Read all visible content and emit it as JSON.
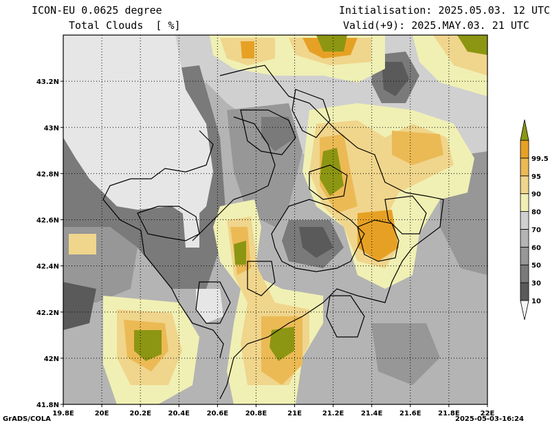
{
  "header": {
    "model": "ICON-EU 0.0625 degree",
    "field": "Total Clouds  [ %]",
    "init": "Initialisation: 2025.05.03. 12 UTC",
    "valid": "Valid(+9): 2025.MAY.03. 21 UTC"
  },
  "footer": {
    "software": "GrADS/COLA",
    "timestamp": "2025-05-03-16:24"
  },
  "map": {
    "lon_range": [
      19.8,
      22.0
    ],
    "lat_range": [
      41.8,
      43.4
    ],
    "x_ticks": [
      "19.8E",
      "20E",
      "20.2E",
      "20.4E",
      "20.6E",
      "20.8E",
      "21E",
      "21.2E",
      "21.4E",
      "21.6E",
      "21.8E",
      "22E"
    ],
    "y_ticks": [
      "41.8N",
      "42N",
      "42.2N",
      "42.4N",
      "42.6N",
      "42.8N",
      "43N",
      "43.2N"
    ]
  },
  "colorbar": {
    "labels": [
      "10",
      "30",
      "50",
      "60",
      "70",
      "80",
      "90",
      "95",
      "99.5"
    ],
    "colors": [
      "#f6f6f6",
      "#5a5a5a",
      "#7a7a7a",
      "#979797",
      "#b4b4b4",
      "#d0d0d0",
      "#f0f0b4",
      "#f0d58c",
      "#ebba55",
      "#e6a125",
      "#8c9612"
    ]
  },
  "colors": {
    "clear": "#e6e6e6",
    "light_gray": "#d0d0d0",
    "mid_gray": "#b4b4b4",
    "gray": "#979797",
    "dark_gray": "#7a7a7a",
    "darker_gray": "#5a5a5a",
    "pale_yellow": "#f0f0b4",
    "light_orange": "#f0d58c",
    "orange": "#ebba55",
    "deep_orange": "#e6a125",
    "olive": "#8c9612"
  }
}
